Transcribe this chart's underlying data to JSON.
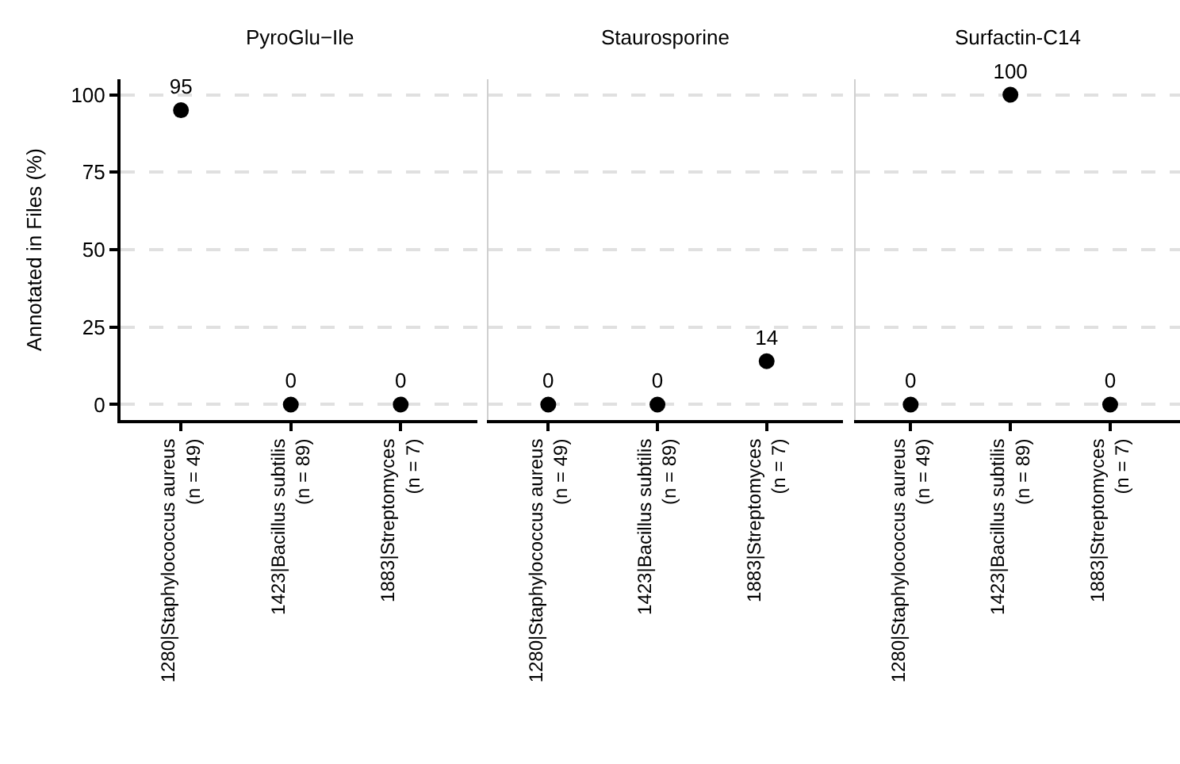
{
  "chart_data": [
    {
      "type": "scatter",
      "title": "PyroGlu−Ile",
      "ylabel": "Annotated in Files (%)",
      "categories": [
        "1280|Staphylococcus aureus\n(n = 49)",
        "1423|Bacillus subtilis\n(n = 89)",
        "1883|Streptomyces\n(n = 7)"
      ],
      "values": [
        95,
        0,
        0
      ],
      "color": "#000000",
      "marker": "circle",
      "data_labels": true,
      "ylim": [
        -5,
        105
      ],
      "yticks": [
        0,
        25,
        50,
        75,
        100
      ],
      "grid": "y"
    },
    {
      "type": "scatter",
      "title": "Staurosporine",
      "categories": [
        "1280|Staphylococcus aureus\n(n = 49)",
        "1423|Bacillus subtilis\n(n = 89)",
        "1883|Streptomyces\n(n = 7)"
      ],
      "values": [
        0,
        0,
        14
      ],
      "color": "#000000",
      "marker": "circle",
      "data_labels": true,
      "ylim": [
        -5,
        105
      ],
      "yticks": [
        0,
        25,
        50,
        75,
        100
      ],
      "grid": "y",
      "tick_labels": "x"
    },
    {
      "type": "scatter",
      "title": "Surfactin-C14",
      "categories": [
        "1280|Staphylococcus aureus\n(n = 49)",
        "1423|Bacillus subtilis\n(n = 89)",
        "1883|Streptomyces\n(n = 7)"
      ],
      "values": [
        0,
        100,
        0
      ],
      "color": "#000000",
      "marker": "circle",
      "data_labels": true,
      "ylim": [
        -5,
        105
      ],
      "yticks": [
        0,
        25,
        50,
        75,
        100
      ],
      "grid": "y",
      "tick_labels": "x"
    }
  ]
}
